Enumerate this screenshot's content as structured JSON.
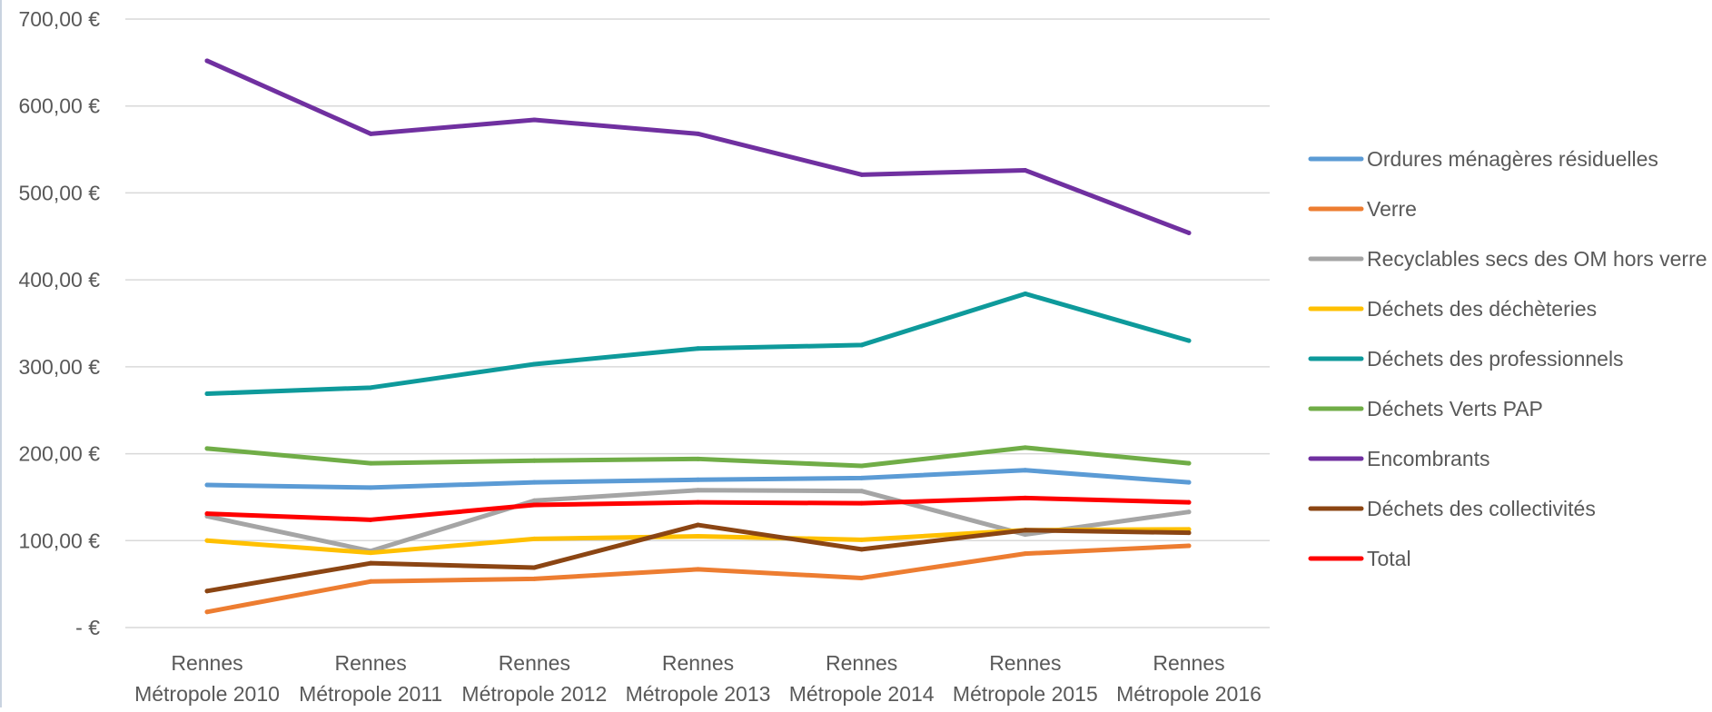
{
  "chart_data": {
    "type": "line",
    "title": "",
    "xlabel": "",
    "ylabel": "",
    "ylim": [
      0,
      700
    ],
    "yticks": [
      {
        "value": 0,
        "label": "-   €"
      },
      {
        "value": 100,
        "label": "100,00 €"
      },
      {
        "value": 200,
        "label": "200,00 €"
      },
      {
        "value": 300,
        "label": "300,00 €"
      },
      {
        "value": 400,
        "label": "400,00 €"
      },
      {
        "value": 500,
        "label": "500,00 €"
      },
      {
        "value": 600,
        "label": "600,00 €"
      },
      {
        "value": 700,
        "label": "700,00 €"
      }
    ],
    "grid": true,
    "legend_position": "right",
    "categories": [
      [
        "Rennes",
        "Métropole 2010"
      ],
      [
        "Rennes",
        "Métropole 2011"
      ],
      [
        "Rennes",
        "Métropole 2012"
      ],
      [
        "Rennes",
        "Métropole 2013"
      ],
      [
        "Rennes",
        "Métropole 2014"
      ],
      [
        "Rennes",
        "Métropole 2015"
      ],
      [
        "Rennes",
        "Métropole 2016"
      ]
    ],
    "series": [
      {
        "name": "Ordures ménagères résiduelles",
        "color": "#5b9bd5",
        "values": [
          164,
          161,
          167,
          170,
          172,
          181,
          167
        ]
      },
      {
        "name": "Verre",
        "color": "#ed7d31",
        "values": [
          18,
          53,
          56,
          67,
          57,
          85,
          94
        ]
      },
      {
        "name": "Recyclables secs des OM hors verre",
        "color": "#a5a5a5",
        "values": [
          128,
          88,
          146,
          158,
          157,
          107,
          133
        ]
      },
      {
        "name": "Déchets des déchèteries",
        "color": "#ffc000",
        "values": [
          100,
          86,
          102,
          105,
          101,
          112,
          113
        ]
      },
      {
        "name": "Déchets des professionnels",
        "color": "#0e9a9b",
        "values": [
          269,
          276,
          303,
          321,
          325,
          384,
          330
        ]
      },
      {
        "name": "Déchets Verts PAP",
        "color": "#70ad47",
        "values": [
          206,
          189,
          192,
          194,
          186,
          207,
          189
        ]
      },
      {
        "name": "Encombrants",
        "color": "#7030a0",
        "values": [
          652,
          568,
          584,
          568,
          521,
          526,
          454
        ]
      },
      {
        "name": "Déchets des collectivités",
        "color": "#8b4513",
        "values": [
          42,
          74,
          69,
          118,
          90,
          112,
          109
        ]
      },
      {
        "name": "Total",
        "color": "#ff0000",
        "values": [
          131,
          124,
          141,
          144,
          143,
          149,
          144
        ]
      }
    ]
  }
}
